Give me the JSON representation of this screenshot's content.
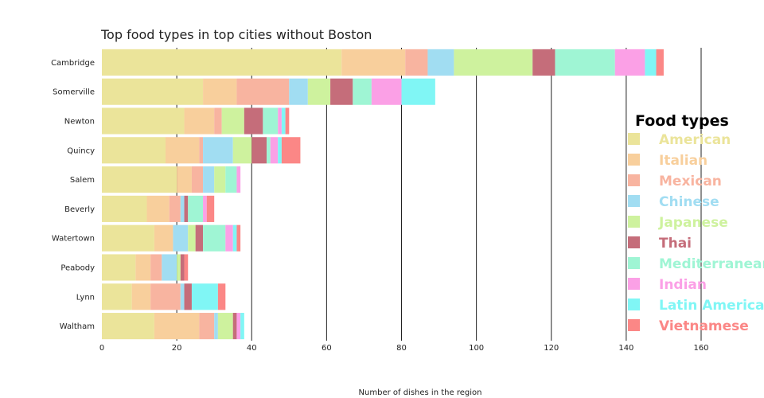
{
  "chart_data": {
    "type": "bar",
    "orientation": "horizontal",
    "stacked": true,
    "title": "Top food types in top cities without Boston",
    "xlabel": "Number of dishes in the region",
    "ylabel": "",
    "xlim": [
      0,
      160
    ],
    "xticks": [
      0,
      20,
      40,
      60,
      80,
      100,
      120,
      140,
      160
    ],
    "grid": "vertical",
    "legend_title": "Food types",
    "legend_position": "right",
    "categories": [
      "Cambridge",
      "Somerville",
      "Newton",
      "Quincy",
      "Salem",
      "Beverly",
      "Watertown",
      "Peabody",
      "Lynn",
      "Waltham"
    ],
    "series": [
      {
        "name": "American",
        "color": "#ebe49a",
        "values": [
          64,
          27,
          22,
          17,
          20,
          12,
          14,
          9,
          8,
          14
        ]
      },
      {
        "name": "Italian",
        "color": "#f8cf9c",
        "values": [
          17,
          9,
          8,
          9,
          4,
          6,
          5,
          4,
          5,
          12
        ]
      },
      {
        "name": "Mexican",
        "color": "#f8b4a0",
        "values": [
          6,
          14,
          2,
          1,
          3,
          3,
          0,
          3,
          8,
          4
        ]
      },
      {
        "name": "Chinese",
        "color": "#a1ddf2",
        "values": [
          7,
          5,
          0,
          8,
          3,
          1,
          4,
          4,
          1,
          1
        ]
      },
      {
        "name": "Japanese",
        "color": "#cef29e",
        "values": [
          21,
          6,
          6,
          5,
          3,
          0,
          2,
          1,
          0,
          4
        ]
      },
      {
        "name": "Thai",
        "color": "#c56d7a",
        "values": [
          6,
          6,
          5,
          4,
          0,
          1,
          2,
          1,
          2,
          1
        ]
      },
      {
        "name": "Mediterranean",
        "color": "#9ff5d4",
        "values": [
          16,
          5,
          4,
          1,
          3,
          4,
          6,
          0,
          0,
          0
        ]
      },
      {
        "name": "Indian",
        "color": "#fba0e6",
        "values": [
          8,
          8,
          1,
          2,
          1,
          1,
          2,
          0,
          0,
          1
        ]
      },
      {
        "name": "Latin American",
        "color": "#80f6f5",
        "values": [
          3,
          9,
          1,
          1,
          0,
          0,
          1,
          0,
          7,
          1
        ]
      },
      {
        "name": "Vietnamese",
        "color": "#fb8786",
        "values": [
          2,
          0,
          1,
          5,
          0,
          2,
          1,
          1,
          2,
          0
        ]
      }
    ]
  }
}
